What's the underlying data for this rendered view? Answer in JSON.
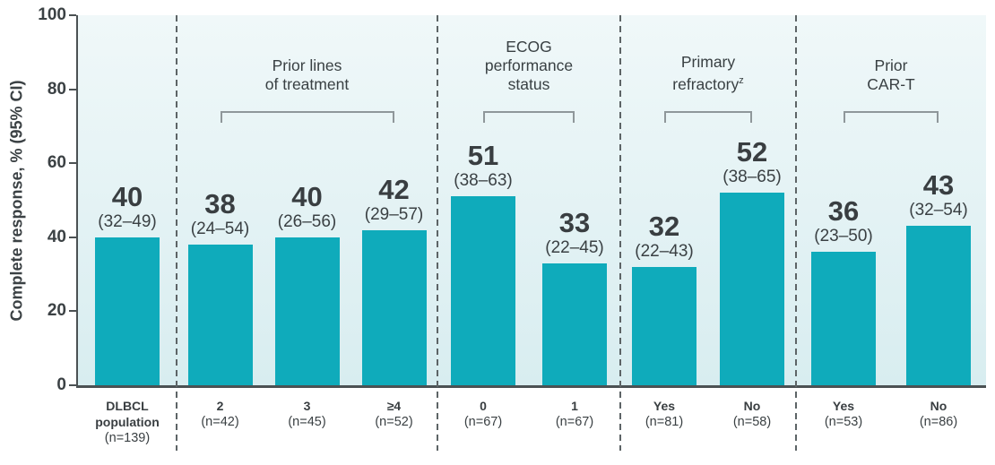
{
  "chart_data": {
    "type": "bar",
    "title": "",
    "ylabel": "Complete response, % (95% CI)",
    "xlabel": "",
    "ylim": [
      0,
      100
    ],
    "yticks": [
      0,
      20,
      40,
      60,
      80,
      100
    ],
    "grid": false,
    "legend": false,
    "colors": {
      "bar": "#0fabbb",
      "plot_bg_top": "#f0f8f9",
      "plot_bg_bottom": "#d8edf0",
      "axis": "#4b5153",
      "text_dark": "#3a4043",
      "separator": "#5d6466",
      "bracket": "#8f979a"
    },
    "groups": [
      {
        "header_lines": [],
        "bars": [
          {
            "x_lines": [
              "DLBCL",
              "population"
            ],
            "n": "(n=139)",
            "value": 40,
            "ci": "(32–49)"
          }
        ]
      },
      {
        "header_lines": [
          "Prior lines",
          "of treatment"
        ],
        "bars": [
          {
            "x_lines": [
              "2"
            ],
            "n": "(n=42)",
            "value": 38,
            "ci": "(24–54)"
          },
          {
            "x_lines": [
              "3"
            ],
            "n": "(n=45)",
            "value": 40,
            "ci": "(26–56)"
          },
          {
            "x_lines": [
              "≥4"
            ],
            "n": "(n=52)",
            "value": 42,
            "ci": "(29–57)"
          }
        ]
      },
      {
        "header_lines": [
          "ECOG",
          "performance",
          "status"
        ],
        "bars": [
          {
            "x_lines": [
              "0"
            ],
            "n": "(n=67)",
            "value": 51,
            "ci": "(38–63)"
          },
          {
            "x_lines": [
              "1"
            ],
            "n": "(n=67)",
            "value": 33,
            "ci": "(22–45)"
          }
        ]
      },
      {
        "header_lines": [
          "Primary",
          "refractory^z"
        ],
        "bars": [
          {
            "x_lines": [
              "Yes"
            ],
            "n": "(n=81)",
            "value": 32,
            "ci": "(22–43)"
          },
          {
            "x_lines": [
              "No"
            ],
            "n": "(n=58)",
            "value": 52,
            "ci": "(38–65)"
          }
        ]
      },
      {
        "header_lines": [
          "Prior",
          "CAR-T"
        ],
        "bars": [
          {
            "x_lines": [
              "Yes"
            ],
            "n": "(n=53)",
            "value": 36,
            "ci": "(23–50)"
          },
          {
            "x_lines": [
              "No"
            ],
            "n": "(n=86)",
            "value": 43,
            "ci": "(32–54)"
          }
        ]
      }
    ]
  }
}
